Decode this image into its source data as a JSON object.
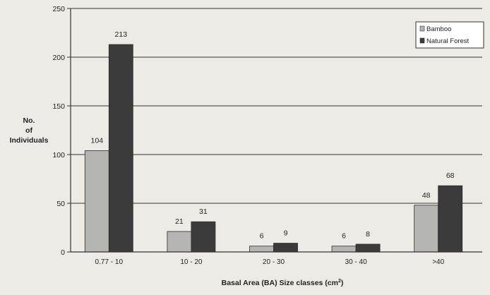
{
  "chart_data": {
    "type": "bar",
    "title": "",
    "ylabel": [
      "No.",
      "of",
      "Individuals"
    ],
    "xlabel_main": "Basal Area (BA) Size classes (cm",
    "xlabel_sup": "2",
    "xlabel_tail": ")",
    "categories": [
      "0.77 - 10",
      "10 - 20",
      "20 - 30",
      "30 - 40",
      ">40"
    ],
    "series": [
      {
        "name": "Bamboo",
        "values": [
          104,
          21,
          6,
          6,
          48
        ],
        "color": "#b5b5b2"
      },
      {
        "name": "Natural Forest",
        "values": [
          213,
          31,
          9,
          8,
          68
        ],
        "color": "#3b3b3b"
      }
    ],
    "ylim": [
      0,
      250
    ],
    "yticks": [
      0,
      50,
      100,
      150,
      200,
      250
    ],
    "grid": true,
    "legend_position": "top-right"
  }
}
